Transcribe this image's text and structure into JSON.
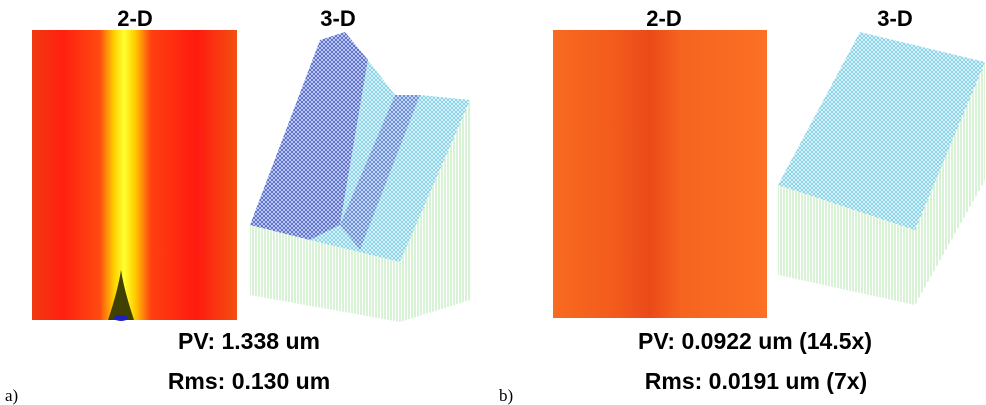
{
  "panels": [
    {
      "label": "a)",
      "views": [
        "2-D",
        "3-D"
      ],
      "pv": "PV: 1.338 um",
      "rms": "Rms: 0.130 um"
    },
    {
      "label": "b)",
      "views": [
        "2-D",
        "3-D"
      ],
      "pv": "PV: 0.0922 um (14.5x)",
      "rms": "Rms: 0.0191 um (7x)"
    }
  ]
}
